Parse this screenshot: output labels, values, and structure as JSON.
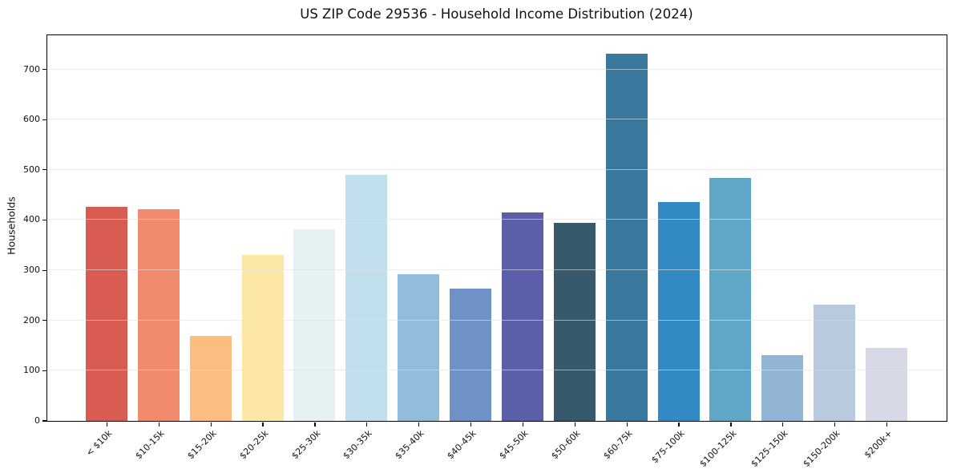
{
  "chart_data": {
    "type": "bar",
    "title": "US ZIP Code 29536 - Household Income Distribution (2024)",
    "xlabel": "",
    "ylabel": "Households",
    "categories": [
      "< $10k",
      "$10-15k",
      "$15-20k",
      "$20-25k",
      "$25-30k",
      "$30-35k",
      "$35-40k",
      "$40-45k",
      "$45-50k",
      "$50-60k",
      "$60-75k",
      "$75-100k",
      "$100-125k",
      "$125-150k",
      "$150-200k",
      "$200k+"
    ],
    "values": [
      426,
      421,
      168,
      330,
      381,
      490,
      292,
      263,
      415,
      394,
      730,
      435,
      483,
      130,
      230,
      145
    ],
    "bar_colors": [
      "#d85c52",
      "#f28a6e",
      "#fcbd80",
      "#fde7a5",
      "#e6f1f4",
      "#c1dfec",
      "#92bcdc",
      "#6f92c6",
      "#5b5fa9",
      "#36596b",
      "#38799d",
      "#3389c1",
      "#5fa7c7",
      "#92b5d6",
      "#b9c9de",
      "#d7d9e6"
    ],
    "yticks": [
      0,
      100,
      200,
      300,
      400,
      500,
      600,
      700
    ],
    "ylim": [
      0,
      768
    ],
    "grid": true,
    "legend_position": "none"
  },
  "colors": {
    "background": "#ffffff",
    "spine": "#000000",
    "grid": "#e1e1e1",
    "text": "#111111"
  }
}
